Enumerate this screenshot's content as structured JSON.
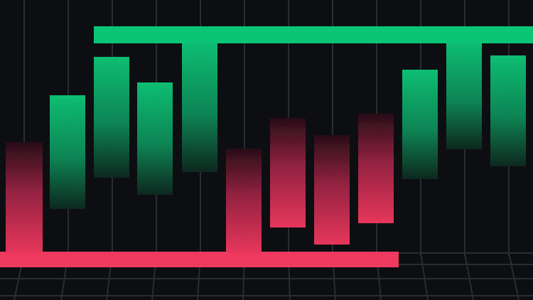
{
  "colors": {
    "background": "#0d0e12",
    "grid": "#2a2c33",
    "bull": "#0bc577",
    "bull_dark": "#0d2a20",
    "bear": "#f0395f",
    "bear_dark": "#2a0f18"
  },
  "candles": [
    {
      "direction": "bear"
    },
    {
      "direction": "bull"
    },
    {
      "direction": "bull"
    },
    {
      "direction": "bull"
    },
    {
      "direction": "bull"
    },
    {
      "direction": "bear"
    },
    {
      "direction": "bear"
    },
    {
      "direction": "bear"
    },
    {
      "direction": "bear"
    },
    {
      "direction": "bull"
    },
    {
      "direction": "bull"
    },
    {
      "direction": "bull"
    }
  ]
}
